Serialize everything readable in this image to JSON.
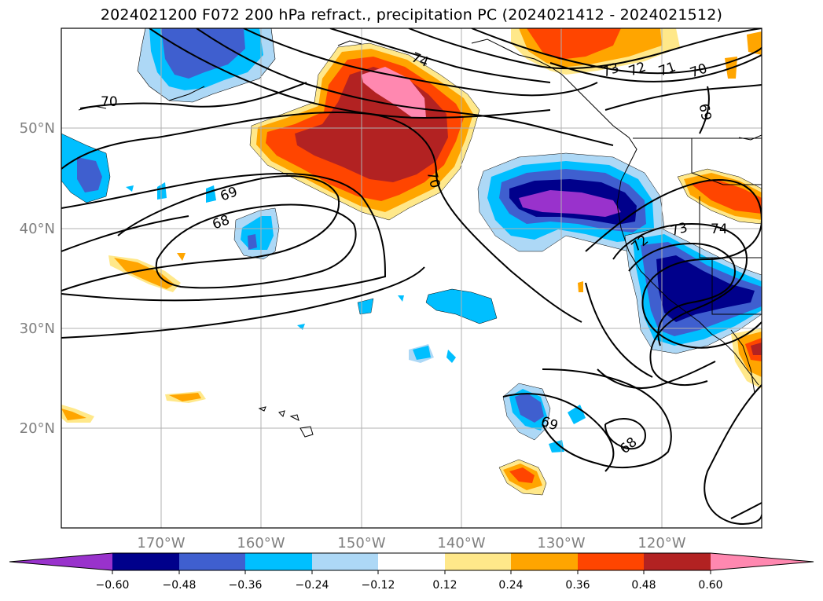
{
  "title": "2024021200 F072 200 hPa refract., precipitation PC (2024021412 - 2024021512)",
  "lat_labels": [
    "50°N",
    "40°N",
    "30°N",
    "20°N"
  ],
  "lon_labels": [
    "170°W",
    "160°W",
    "150°W",
    "140°W",
    "130°W",
    "120°W"
  ],
  "contour_labels": [
    "70",
    "74",
    "73",
    "72",
    "71",
    "70",
    "69",
    "70",
    "69",
    "68",
    "72",
    "73",
    "74",
    "69",
    "68"
  ],
  "colorbar": {
    "tick_labels": [
      "−0.60",
      "−0.48",
      "−0.36",
      "−0.24",
      "−0.12",
      "0.12",
      "0.24",
      "0.36",
      "0.48",
      "0.60"
    ],
    "colors": [
      "#9932cc",
      "#00008b",
      "#3f5fcf",
      "#00bfff",
      "#add8f6",
      "#ffffff",
      "#ffe88a",
      "#ffa500",
      "#ff4500",
      "#b22222",
      "#ff88b0"
    ]
  }
}
